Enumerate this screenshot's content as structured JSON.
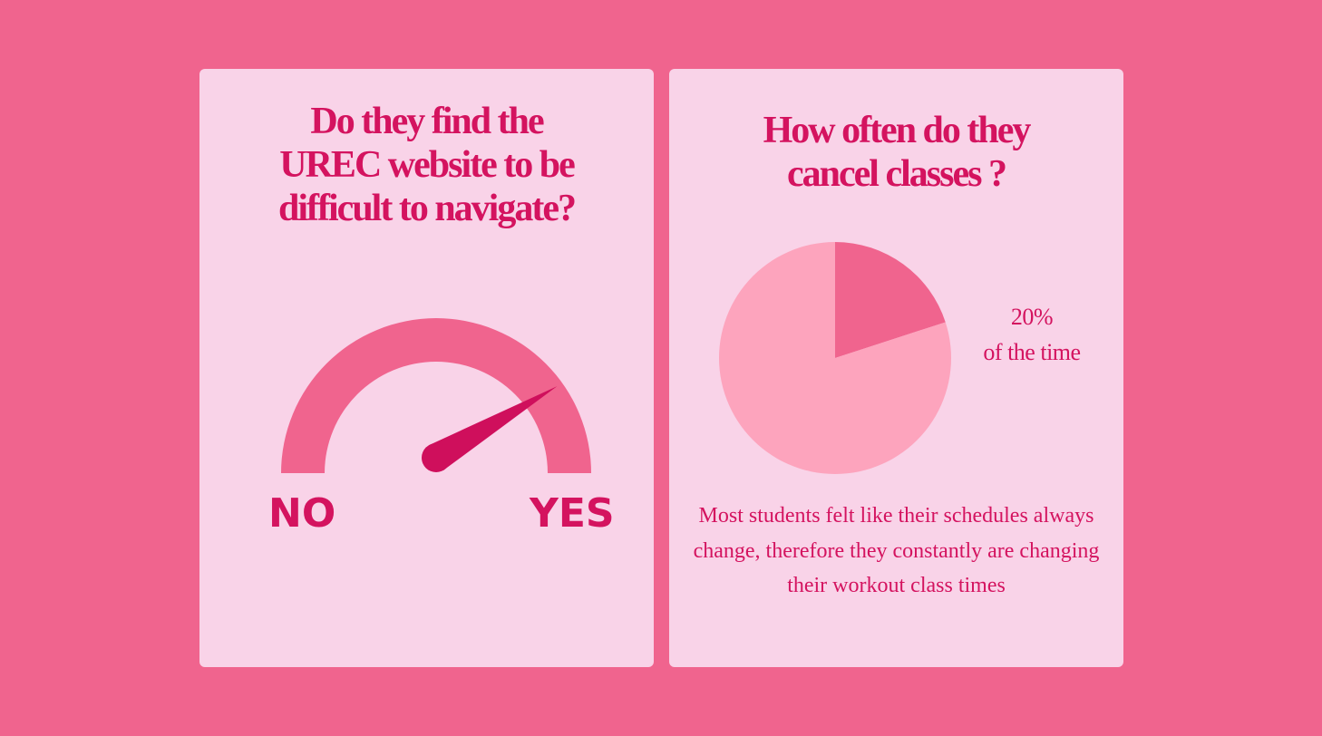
{
  "left_card": {
    "title": "Do they find the\nUREC website to be\ndifficult to navigate?",
    "gauge": {
      "min_label": "NO",
      "max_label": "YES",
      "level": 0.83,
      "colors": {
        "track": "#f0648e",
        "needle": "#cf0f5c"
      }
    }
  },
  "right_card": {
    "title": "How often do they\ncancel classes ?",
    "pie": {
      "value_label": "20%",
      "caption": "of the time"
    },
    "body": "Most students felt like their schedules always change, therefore they constantly are changing their workout class times"
  },
  "chart_data": [
    {
      "type": "gauge",
      "title": "Do they find the UREC website to be difficult to navigate?",
      "min_label": "NO",
      "max_label": "YES",
      "value": 0.83
    },
    {
      "type": "pie",
      "title": "How often do they cancel classes ?",
      "slices": [
        {
          "label": "20% of the time",
          "value": 20,
          "color": "#f0648e"
        },
        {
          "label": "",
          "value": 80,
          "color": "#fda4bd"
        }
      ]
    }
  ],
  "colors": {
    "background": "#f0648e",
    "card": "#f9d3e8",
    "accent_text": "#d4135f"
  }
}
